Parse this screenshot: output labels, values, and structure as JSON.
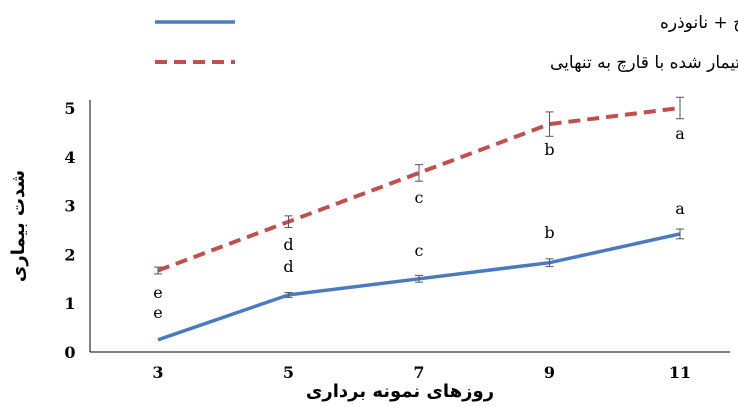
{
  "chart_data": {
    "type": "line",
    "title": "",
    "xlabel": "روزهای نمونه برداری",
    "ylabel": "شدت بیماری",
    "x": [
      3,
      5,
      7,
      9,
      11
    ],
    "ylim": [
      0,
      5
    ],
    "y_ticks": [
      0,
      1,
      2,
      3,
      4,
      5
    ],
    "grid": false,
    "legend_position": "top",
    "series": [
      {
        "name": "شدت بیماری در گیاهان تیمار شده با قارچ + نانوذره",
        "color": "#4a7bc0",
        "style": "solid",
        "values": [
          0.25,
          1.17,
          1.5,
          1.83,
          2.42
        ],
        "errors": [
          0.0,
          0.05,
          0.07,
          0.08,
          0.1
        ],
        "letters": [
          "e",
          "d",
          "c",
          "b",
          "a"
        ]
      },
      {
        "name": "گیاه تیمار شده با قارچ به تنهایی",
        "color": "#c0504d",
        "style": "dashed",
        "values": [
          1.67,
          2.67,
          3.67,
          4.67,
          5.0
        ],
        "errors": [
          0.07,
          0.12,
          0.17,
          0.25,
          0.22
        ],
        "letters": [
          "e",
          "d",
          "c",
          "b",
          "a"
        ]
      }
    ]
  }
}
